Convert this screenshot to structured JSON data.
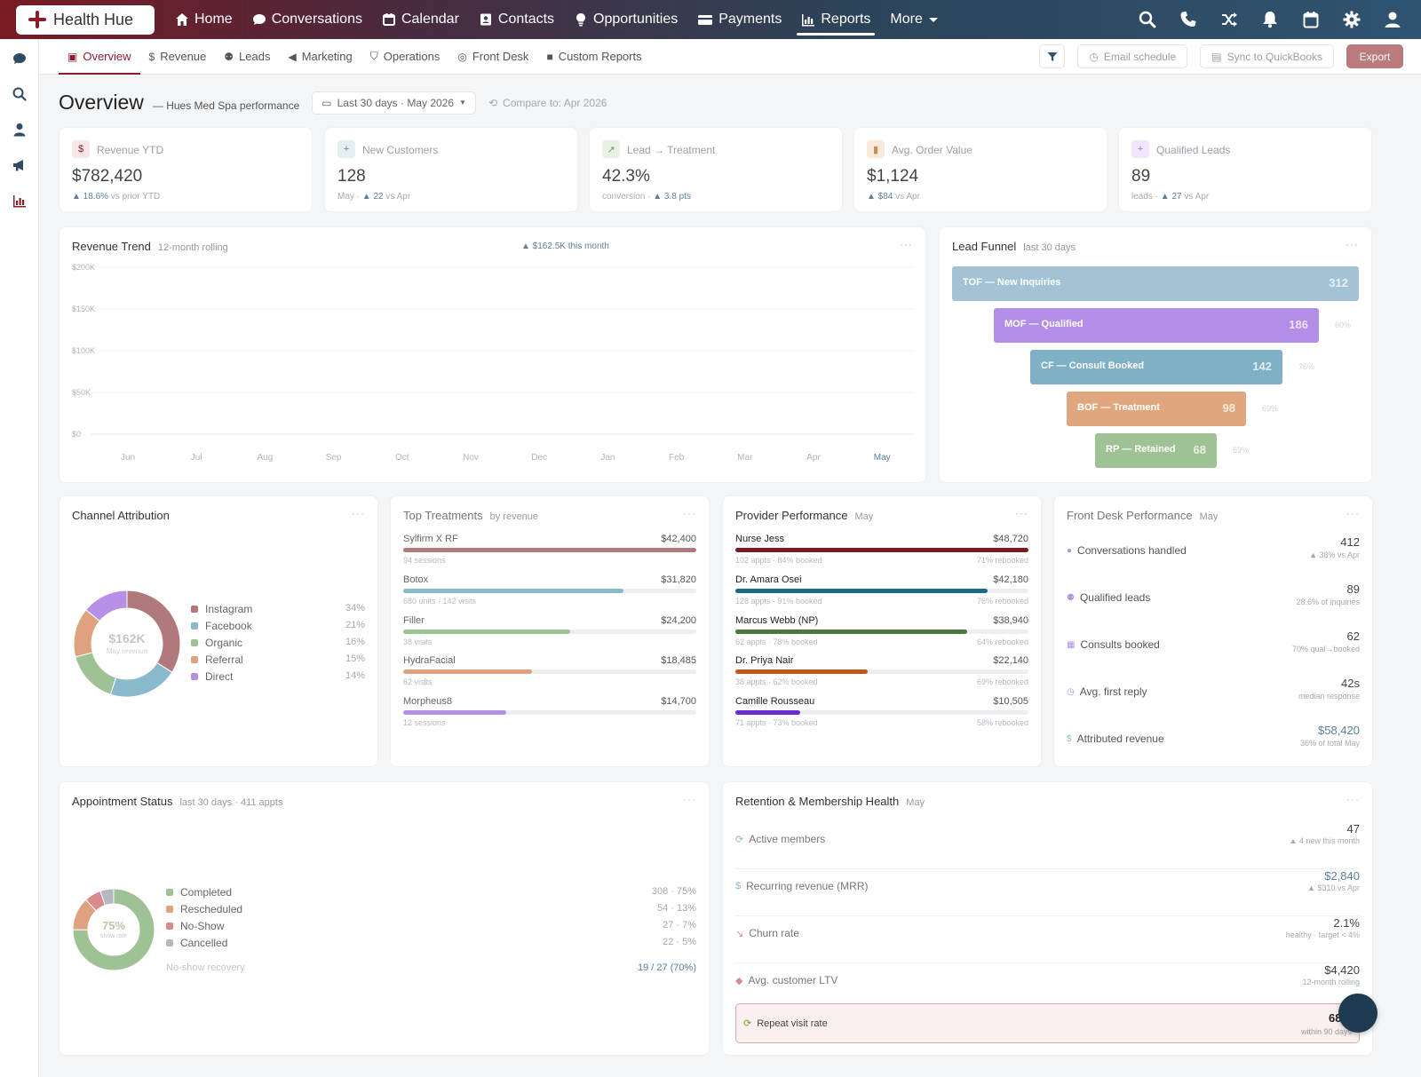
{
  "app": {
    "name": "Health Hue"
  },
  "nav": [
    {
      "label": "Home",
      "icon": "home-icon"
    },
    {
      "label": "Conversations",
      "icon": "chat-icon"
    },
    {
      "label": "Calendar",
      "icon": "calendar-icon"
    },
    {
      "label": "Contacts",
      "icon": "contacts-icon"
    },
    {
      "label": "Opportunities",
      "icon": "lightbulb-icon"
    },
    {
      "label": "Payments",
      "icon": "card-icon"
    },
    {
      "label": "Reports",
      "icon": "bar-chart-icon"
    },
    {
      "label": "More",
      "icon": "chevron-down-icon"
    }
  ],
  "subnav": {
    "tabs": [
      "Overview",
      "Revenue",
      "Leads",
      "Marketing",
      "Operations",
      "Front Desk",
      "Custom Reports"
    ],
    "email_schedule": "Email schedule",
    "sync": "Sync to QuickBooks",
    "export": "Export"
  },
  "header": {
    "title": "Overview",
    "subtitle": "— Hues Med Spa performance",
    "range": "Last 30 days · May 2026",
    "compare": "Compare to: Apr 2026"
  },
  "kpis": [
    {
      "label": "Revenue YTD",
      "value": "$782,420",
      "pre": "",
      "delta": "▲ 18.6%",
      "post": " vs prior YTD",
      "icon": "$"
    },
    {
      "label": "New Customers",
      "value": "128",
      "pre": "May · ",
      "delta": "▲ 22",
      "post": " vs Apr",
      "icon": "+"
    },
    {
      "label": "Lead → Treatment",
      "value": "42.3%",
      "pre": "conversion · ",
      "delta": "▲ 3.8 pts",
      "post": "",
      "icon": "↗"
    },
    {
      "label": "Avg. Order Value",
      "value": "$1,124",
      "pre": "",
      "delta": "▲ $84",
      "post": " vs Apr",
      "icon": "▮"
    },
    {
      "label": "Qualified Leads",
      "value": "89",
      "pre": "leads · ",
      "delta": "▲ 27",
      "post": " vs Apr",
      "icon": "+"
    }
  ],
  "revenue_trend": {
    "title": "Revenue Trend",
    "subtitle": "12-month rolling",
    "badge": "▲ $162.5K this month"
  },
  "chart_data": {
    "type": "line",
    "title": "Revenue Trend",
    "x": [
      "Jun",
      "Jul",
      "Aug",
      "Sep",
      "Oct",
      "Nov",
      "Dec",
      "Jan",
      "Feb",
      "Mar",
      "Apr",
      "May"
    ],
    "yticks": [
      "$200K",
      "$150K",
      "$100K",
      "$50K",
      "$0"
    ],
    "ylim": [
      0,
      200000
    ],
    "series": []
  },
  "funnel": {
    "title": "Lead Funnel",
    "subtitle": "last 30 days",
    "stages": [
      {
        "label": "TOF — New Inquiries",
        "value": "312",
        "pct": "",
        "color": "#a3c3d4"
      },
      {
        "label": "MOF — Qualified",
        "value": "186",
        "pct": "60%",
        "color": "#b48ee6"
      },
      {
        "label": "CF — Consult Booked",
        "value": "142",
        "pct": "76%",
        "color": "#7fb0c6"
      },
      {
        "label": "BOF — Treatment",
        "value": "98",
        "pct": "69%",
        "color": "#e0a77f"
      },
      {
        "label": "RP — Retained",
        "value": "68",
        "pct": "69%",
        "color": "#9ec293"
      }
    ]
  },
  "channel": {
    "title": "Channel Attribution",
    "center_value": "$162K",
    "center_label": "May revenue",
    "items": [
      {
        "label": "Instagram",
        "pct": "34%",
        "value": 34,
        "color": "#b07a7d"
      },
      {
        "label": "Facebook",
        "pct": "21%",
        "value": 21,
        "color": "#8ab9cc"
      },
      {
        "label": "Organic",
        "pct": "16%",
        "value": 16,
        "color": "#9fc295"
      },
      {
        "label": "Referral",
        "pct": "15%",
        "value": 15,
        "color": "#dea37e"
      },
      {
        "label": "Direct",
        "pct": "14%",
        "value": 14,
        "color": "#b590e6"
      }
    ]
  },
  "treatments": {
    "title": "Top Treatments",
    "subtitle": "by revenue",
    "items": [
      {
        "name": "Sylfirm X RF",
        "value": "$42,400",
        "note": "94 sessions",
        "fill": 1.0,
        "color": "#b07a7d"
      },
      {
        "name": "Botox",
        "value": "$31,820",
        "note": "680 units · 142 visits",
        "fill": 0.75,
        "color": "#8ab9cc"
      },
      {
        "name": "Filler",
        "value": "$24,200",
        "note": "38 visits",
        "fill": 0.57,
        "color": "#9fc295"
      },
      {
        "name": "HydraFacial",
        "value": "$18,485",
        "note": "62 visits",
        "fill": 0.44,
        "color": "#dea37e"
      },
      {
        "name": "Morpheus8",
        "value": "$14,700",
        "note": "12 sessions",
        "fill": 0.35,
        "color": "#b590e6"
      }
    ]
  },
  "providers": {
    "title": "Provider Performance",
    "subtitle": "May",
    "items": [
      {
        "name": "Nurse Jess",
        "value": "$48,720",
        "note": "102 appts · 84% booked",
        "rebook": "71% rebooked",
        "fill": 1.0,
        "color": "#7a1a22"
      },
      {
        "name": "Dr. Amara Osei",
        "value": "$42,180",
        "note": "128 appts · 91% booked",
        "rebook": "76% rebooked",
        "fill": 0.86,
        "color": "#1f6a8a"
      },
      {
        "name": "Marcus Webb (NP)",
        "value": "$38,940",
        "note": "62 appts · 78% booked",
        "rebook": "64% rebooked",
        "fill": 0.79,
        "color": "#4a7a3a"
      },
      {
        "name": "Dr. Priya Nair",
        "value": "$22,140",
        "note": "38 appts · 62% booked",
        "rebook": "69% rebooked",
        "fill": 0.45,
        "color": "#c2571c"
      },
      {
        "name": "Camille Rousseau",
        "value": "$10,505",
        "note": "71 appts · 73% booked",
        "rebook": "58% rebooked",
        "fill": 0.22,
        "color": "#6a2ad0"
      }
    ]
  },
  "frontdesk": {
    "title": "Front Desk Performance",
    "subtitle": "May",
    "items": [
      {
        "name": "Conversations handled",
        "value": "412",
        "note": "▲ 38% vs Apr",
        "icon": "chat-icon",
        "color": "#b48ee6"
      },
      {
        "name": "Qualified leads",
        "value": "89",
        "note": "28.6% of inquiries",
        "icon": "user-plus-icon",
        "color": "#b48ee6"
      },
      {
        "name": "Consults booked",
        "value": "62",
        "note": "70% qual→booked",
        "icon": "calendar-icon",
        "color": "#b48ee6"
      },
      {
        "name": "Avg. first reply",
        "value": "42s",
        "note": "median response",
        "icon": "clock-icon",
        "color": "#b48ee6"
      },
      {
        "name": "Attributed revenue",
        "value": "$58,420",
        "note": "36% of total May",
        "icon": "dollar-icon",
        "color": "#8ab9cc"
      }
    ]
  },
  "appointments": {
    "title": "Appointment Status",
    "subtitle": "last 30 days · 411 appts",
    "center_value": "75%",
    "center_label": "show rate",
    "items": [
      {
        "label": "Completed",
        "detail": "308 · 75%",
        "value": 308,
        "color": "#9fc295"
      },
      {
        "label": "Rescheduled",
        "detail": "54 · 13%",
        "value": 54,
        "color": "#dea37e"
      },
      {
        "label": "No-Show",
        "detail": "27 · 7%",
        "value": 27,
        "color": "#d98a8a"
      },
      {
        "label": "Cancelled",
        "detail": "22 · 5%",
        "value": 22,
        "color": "#b4b8bf"
      }
    ],
    "recovery_label": "No-show recovery",
    "recovery_value": "19 / 27 (70%)"
  },
  "retention": {
    "title": "Retention & Membership Health",
    "subtitle": "May",
    "items": [
      {
        "name": "Active members",
        "value": "47",
        "note": "▲ 4 new this month",
        "icon": "refresh-icon"
      },
      {
        "name": "Recurring revenue (MRR)",
        "value": "$2,840",
        "note": "▲ $310 vs Apr",
        "icon": "dollar-icon"
      },
      {
        "name": "Churn rate",
        "value": "2.1%",
        "note": "healthy · target < 4%",
        "icon": "trend-down-icon"
      },
      {
        "name": "Avg. customer LTV",
        "value": "$4,420",
        "note": "12-month rolling",
        "icon": "gem-icon"
      }
    ],
    "highlight": {
      "name": "Repeat visit rate",
      "value": "68%",
      "note": "within 90 days"
    }
  },
  "colors": {
    "brand": "#8a1f2b",
    "accent": "#2f5370"
  }
}
